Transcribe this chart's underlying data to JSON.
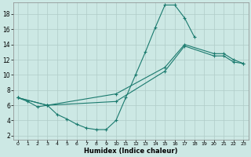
{
  "xlabel": "Humidex (Indice chaleur)",
  "bg_color": "#cce8e4",
  "grid_color": "#b0ccc8",
  "line_color": "#1a7a6e",
  "xlim": [
    -0.5,
    23.5
  ],
  "ylim": [
    1.5,
    19.5
  ],
  "xtick_labels": [
    "0",
    "1",
    "2",
    "3",
    "4",
    "5",
    "6",
    "7",
    "8",
    "9",
    "10",
    "11",
    "12",
    "13",
    "14",
    "15",
    "16",
    "17",
    "18",
    "19",
    "20",
    "21",
    "22",
    "23"
  ],
  "ytick_vals": [
    2,
    4,
    6,
    8,
    10,
    12,
    14,
    16,
    18
  ],
  "line1_x": [
    0,
    1,
    2,
    3,
    4,
    5,
    6,
    7,
    8,
    9,
    10,
    11,
    12,
    13,
    14,
    15,
    16,
    17,
    18
  ],
  "line1_y": [
    7.0,
    6.5,
    5.8,
    6.0,
    4.8,
    4.2,
    3.5,
    3.0,
    2.8,
    2.8,
    4.0,
    7.0,
    10.0,
    13.0,
    16.2,
    19.2,
    19.2,
    17.5,
    15.0
  ],
  "line2_x": [
    0,
    3,
    10,
    15,
    17,
    20,
    21,
    22,
    23
  ],
  "line2_y": [
    7.0,
    6.0,
    6.5,
    10.5,
    13.8,
    12.5,
    12.5,
    11.7,
    11.5
  ],
  "line3_x": [
    0,
    3,
    10,
    15,
    17,
    20,
    21,
    22,
    23
  ],
  "line3_y": [
    7.0,
    6.0,
    7.5,
    11.0,
    14.0,
    12.8,
    12.8,
    12.0,
    11.5
  ],
  "xlabel_fontsize": 6.0,
  "xlabel_fontweight": "bold",
  "tick_fontsize_x": 4.5,
  "tick_fontsize_y": 5.5,
  "linewidth": 0.8,
  "markersize": 2.5,
  "markeredgewidth": 0.8
}
